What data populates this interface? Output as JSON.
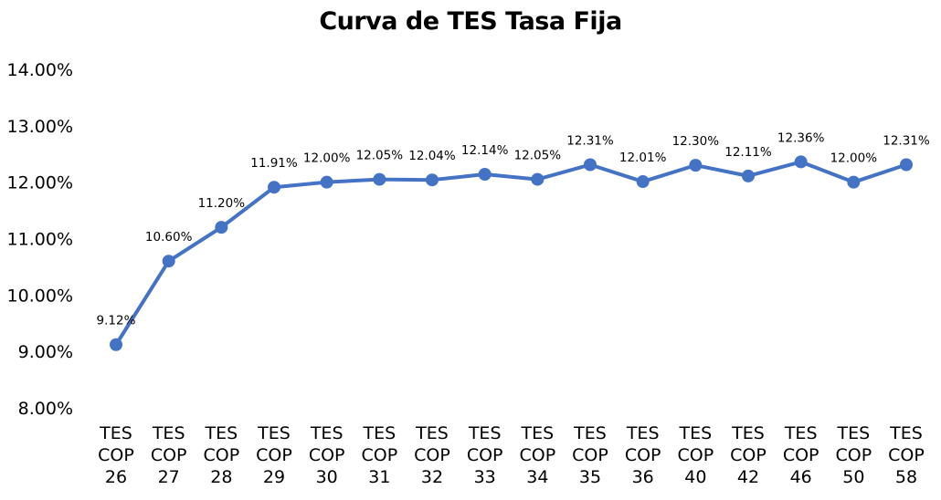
{
  "chart_data": {
    "type": "line",
    "title": "Curva de TES Tasa Fija",
    "categories": [
      [
        "TES",
        "COP",
        "26"
      ],
      [
        "TES",
        "COP",
        "27"
      ],
      [
        "TES",
        "COP",
        "28"
      ],
      [
        "TES",
        "COP",
        "29"
      ],
      [
        "TES",
        "COP",
        "30"
      ],
      [
        "TES",
        "COP",
        "31"
      ],
      [
        "TES",
        "COP",
        "32"
      ],
      [
        "TES",
        "COP",
        "33"
      ],
      [
        "TES",
        "COP",
        "34"
      ],
      [
        "TES",
        "COP",
        "35"
      ],
      [
        "TES",
        "COP",
        "36"
      ],
      [
        "TES",
        "COP",
        "40"
      ],
      [
        "TES",
        "COP",
        "42"
      ],
      [
        "TES",
        "COP",
        "46"
      ],
      [
        "TES",
        "COP",
        "50"
      ],
      [
        "TES",
        "COP",
        "58"
      ]
    ],
    "values": [
      9.12,
      10.6,
      11.2,
      11.91,
      12.0,
      12.05,
      12.04,
      12.14,
      12.05,
      12.31,
      12.01,
      12.3,
      12.11,
      12.36,
      12.0,
      12.31
    ],
    "data_labels": [
      "9.12%",
      "10.60%",
      "11.20%",
      "11.91%",
      "12.00%",
      "12.05%",
      "12.04%",
      "12.14%",
      "12.05%",
      "12.31%",
      "12.01%",
      "12.30%",
      "12.11%",
      "12.36%",
      "12.00%",
      "12.31%"
    ],
    "y_ticks": [
      "8.00%",
      "9.00%",
      "10.00%",
      "11.00%",
      "12.00%",
      "13.00%",
      "14.00%"
    ],
    "ylim": [
      8,
      14
    ],
    "grid": false,
    "legend": "none",
    "series_color": "#4472C4"
  }
}
